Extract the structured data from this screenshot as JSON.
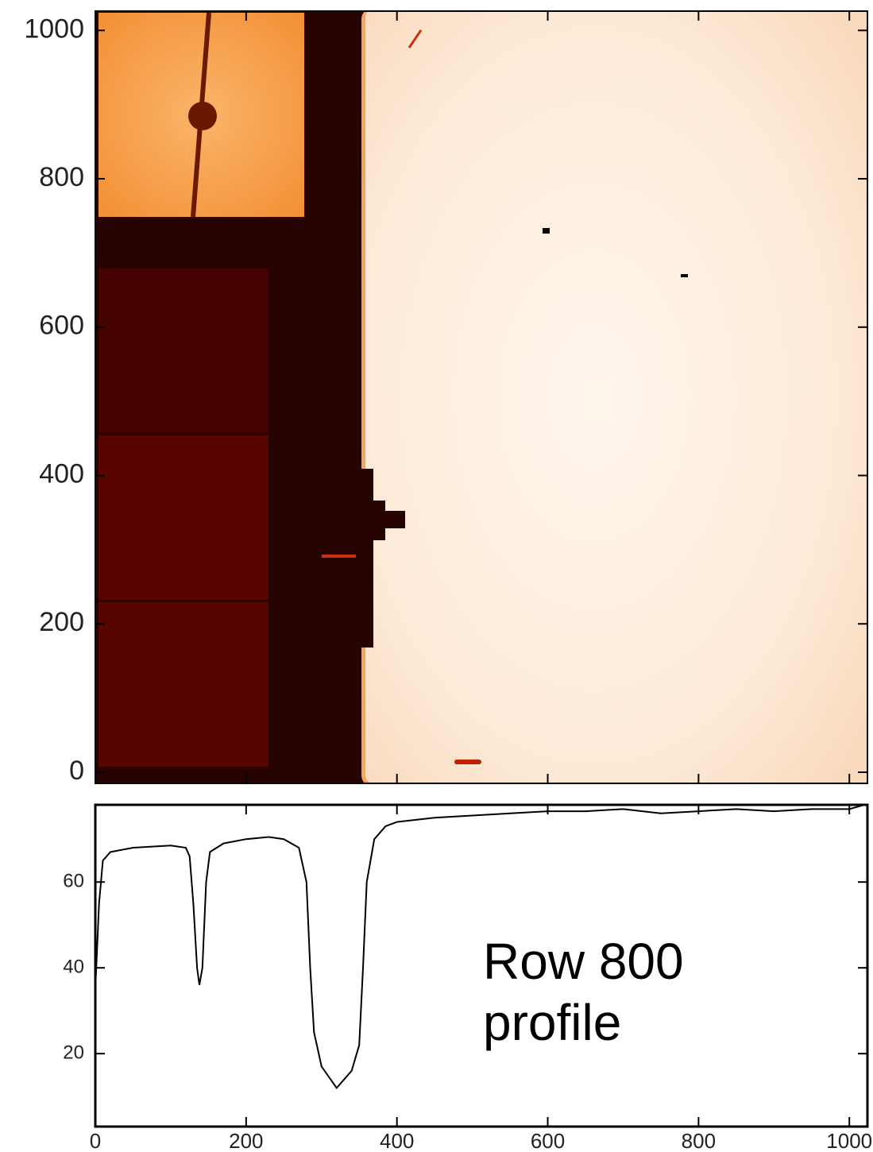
{
  "chart_data": [
    {
      "type": "image",
      "xlim": [
        0,
        1024
      ],
      "ylim": [
        -15,
        1026
      ],
      "xticks": [
        0,
        200,
        400,
        600,
        800,
        1000
      ],
      "yticks": [
        0,
        200,
        400,
        600,
        800,
        1000
      ]
    },
    {
      "type": "line",
      "xlim": [
        0,
        1024
      ],
      "ylim": [
        3,
        78
      ],
      "xticks": [
        0,
        200,
        400,
        600,
        800,
        1000
      ],
      "yticks": [
        20,
        40,
        60
      ],
      "x": [
        0,
        5,
        10,
        20,
        50,
        100,
        120,
        125,
        130,
        135,
        138,
        142,
        147,
        152,
        170,
        200,
        230,
        250,
        270,
        280,
        285,
        290,
        300,
        320,
        340,
        350,
        355,
        360,
        370,
        385,
        400,
        450,
        500,
        550,
        600,
        650,
        700,
        750,
        800,
        850,
        900,
        950,
        1000,
        1020
      ],
      "values": [
        35,
        55,
        65,
        67,
        68,
        68.5,
        68,
        66,
        55,
        40,
        36,
        40,
        60,
        67,
        69,
        70,
        70.5,
        70,
        68,
        60,
        40,
        25,
        17,
        12,
        16,
        22,
        40,
        60,
        70,
        73,
        74,
        75,
        75.5,
        76,
        76.5,
        76.5,
        77,
        76,
        76.5,
        77,
        76.5,
        77,
        77,
        78
      ],
      "color": "#000000",
      "annotation": "Row 800 profile"
    }
  ]
}
